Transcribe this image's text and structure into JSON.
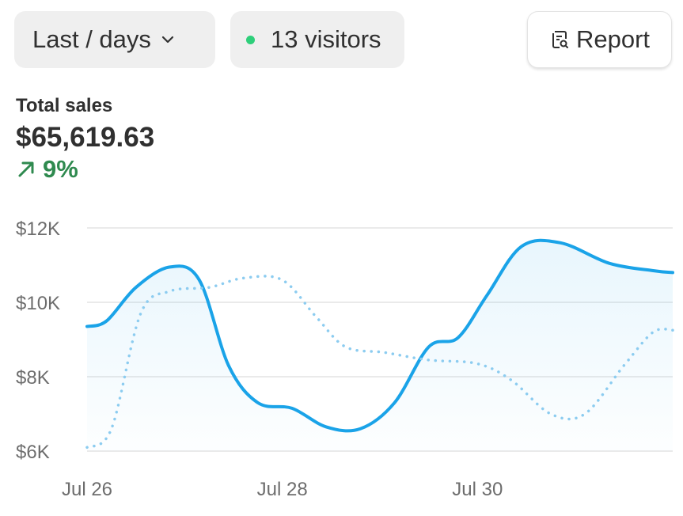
{
  "toolbar": {
    "range_label": "Last / days",
    "visitors_label": "13 visitors",
    "report_label": "Report",
    "icons": {
      "range": "chevron-down-icon",
      "visitors": "status-dot-icon",
      "report": "report-search-icon"
    },
    "colors": {
      "status_dot": "#2ecf7a"
    }
  },
  "summary": {
    "label": "Total sales",
    "total": "$65,619.63",
    "change": "9%",
    "change_icon": "arrow-up-right-icon",
    "change_color": "#2f8a4f"
  },
  "chart_data": {
    "type": "line",
    "grid": true,
    "ylim": [
      6000,
      12000
    ],
    "y_ticks": [
      {
        "value": 12000,
        "label": "$12K"
      },
      {
        "value": 10000,
        "label": "$10K"
      },
      {
        "value": 8000,
        "label": "$8K"
      },
      {
        "value": 6000,
        "label": "$6K"
      }
    ],
    "xlim": [
      0,
      6
    ],
    "x_ticks": [
      {
        "value": 0,
        "label": "Jul 26"
      },
      {
        "value": 2,
        "label": "Jul 28"
      },
      {
        "value": 4,
        "label": "Jul 30"
      }
    ],
    "series": [
      {
        "style": "solid",
        "color": "#1aa3e8",
        "fill": true,
        "points": [
          [
            0,
            9350
          ],
          [
            0.2,
            9500
          ],
          [
            0.5,
            10400
          ],
          [
            0.85,
            10950
          ],
          [
            1.15,
            10600
          ],
          [
            1.45,
            8300
          ],
          [
            1.75,
            7300
          ],
          [
            2.1,
            7150
          ],
          [
            2.45,
            6650
          ],
          [
            2.8,
            6600
          ],
          [
            3.15,
            7300
          ],
          [
            3.5,
            8800
          ],
          [
            3.8,
            9050
          ],
          [
            4.1,
            10200
          ],
          [
            4.45,
            11500
          ],
          [
            4.85,
            11600
          ],
          [
            5.35,
            11050
          ],
          [
            5.8,
            10850
          ],
          [
            6,
            10800
          ]
        ]
      },
      {
        "style": "dotted",
        "color": "#8cccf0",
        "fill": false,
        "points": [
          [
            0,
            6100
          ],
          [
            0.25,
            6600
          ],
          [
            0.55,
            9700
          ],
          [
            0.85,
            10300
          ],
          [
            1.25,
            10400
          ],
          [
            1.6,
            10650
          ],
          [
            2.0,
            10600
          ],
          [
            2.35,
            9600
          ],
          [
            2.65,
            8800
          ],
          [
            3.05,
            8650
          ],
          [
            3.5,
            8450
          ],
          [
            4.0,
            8350
          ],
          [
            4.35,
            7900
          ],
          [
            4.75,
            7000
          ],
          [
            5.1,
            7000
          ],
          [
            5.5,
            8300
          ],
          [
            5.8,
            9200
          ],
          [
            6,
            9250
          ]
        ]
      }
    ]
  }
}
